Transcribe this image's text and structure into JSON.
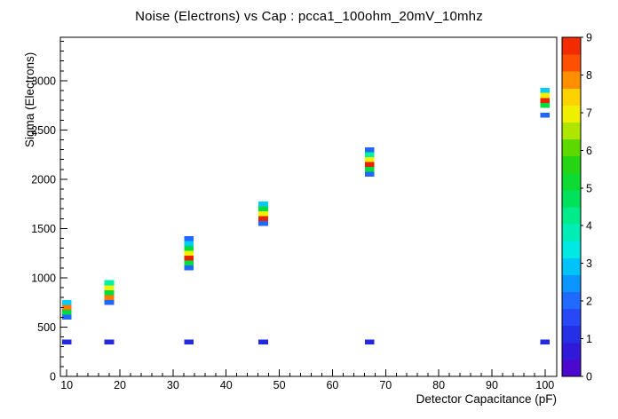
{
  "title": "Noise (Electrons) vs Cap : pcca1_100ohm_20mV_10mhz",
  "chart_data": {
    "type": "heatmap",
    "title": "Noise (Electrons) vs Cap : pcca1_100ohm_20mV_10mhz",
    "xlabel": "Detector Capacitance (pF)",
    "ylabel": "Sigma (Electrons)",
    "xlim": [
      8.8,
      102.2
    ],
    "ylim": [
      0,
      3440
    ],
    "zlim": [
      0,
      9
    ],
    "x_ticks": [
      10,
      20,
      30,
      40,
      50,
      60,
      70,
      80,
      90,
      100
    ],
    "y_ticks": [
      0,
      500,
      1000,
      1500,
      2000,
      2500,
      3000
    ],
    "z_ticks": [
      0,
      1,
      2,
      3,
      4,
      5,
      6,
      7,
      8,
      9
    ],
    "x_bin_width": 1.8,
    "y_bin_width": 50,
    "grid": false,
    "legend_position": "right-colorbar",
    "frame_color": "#000000",
    "palette": [
      [
        0.0,
        "#5a00c8"
      ],
      [
        0.1,
        "#2222dd"
      ],
      [
        0.2,
        "#2a55ff"
      ],
      [
        0.3,
        "#00aaff"
      ],
      [
        0.36,
        "#00e8f0"
      ],
      [
        0.45,
        "#00f0a0"
      ],
      [
        0.55,
        "#00dd44"
      ],
      [
        0.65,
        "#33d200"
      ],
      [
        0.72,
        "#a8e500"
      ],
      [
        0.78,
        "#f5f000"
      ],
      [
        0.84,
        "#ffc800"
      ],
      [
        0.89,
        "#ff7700"
      ],
      [
        0.95,
        "#ff3300"
      ],
      [
        1.0,
        "#e62200"
      ]
    ],
    "cells": [
      {
        "x": 10,
        "y": 350,
        "z": 1
      },
      {
        "x": 10,
        "y": 600,
        "z": 2
      },
      {
        "x": 10,
        "y": 650,
        "z": 5
      },
      {
        "x": 10,
        "y": 700,
        "z": 8
      },
      {
        "x": 10,
        "y": 750,
        "z": 3
      },
      {
        "x": 18,
        "y": 350,
        "z": 1
      },
      {
        "x": 18,
        "y": 750,
        "z": 2
      },
      {
        "x": 18,
        "y": 800,
        "z": 8
      },
      {
        "x": 18,
        "y": 850,
        "z": 5
      },
      {
        "x": 18,
        "y": 900,
        "z": 7
      },
      {
        "x": 18,
        "y": 950,
        "z": 4
      },
      {
        "x": 33,
        "y": 350,
        "z": 1
      },
      {
        "x": 33,
        "y": 1100,
        "z": 2
      },
      {
        "x": 33,
        "y": 1150,
        "z": 5
      },
      {
        "x": 33,
        "y": 1200,
        "z": 9
      },
      {
        "x": 33,
        "y": 1250,
        "z": 7
      },
      {
        "x": 33,
        "y": 1300,
        "z": 5
      },
      {
        "x": 33,
        "y": 1350,
        "z": 3
      },
      {
        "x": 33,
        "y": 1400,
        "z": 2
      },
      {
        "x": 47,
        "y": 350,
        "z": 1
      },
      {
        "x": 47,
        "y": 1550,
        "z": 2
      },
      {
        "x": 47,
        "y": 1600,
        "z": 9
      },
      {
        "x": 47,
        "y": 1650,
        "z": 7
      },
      {
        "x": 47,
        "y": 1700,
        "z": 5
      },
      {
        "x": 47,
        "y": 1750,
        "z": 3
      },
      {
        "x": 67,
        "y": 350,
        "z": 1
      },
      {
        "x": 67,
        "y": 2050,
        "z": 2
      },
      {
        "x": 67,
        "y": 2100,
        "z": 5
      },
      {
        "x": 67,
        "y": 2150,
        "z": 9
      },
      {
        "x": 67,
        "y": 2200,
        "z": 7
      },
      {
        "x": 67,
        "y": 2250,
        "z": 4
      },
      {
        "x": 67,
        "y": 2300,
        "z": 2
      },
      {
        "x": 100,
        "y": 350,
        "z": 1
      },
      {
        "x": 100,
        "y": 2650,
        "z": 2
      },
      {
        "x": 100,
        "y": 2750,
        "z": 5
      },
      {
        "x": 100,
        "y": 2800,
        "z": 9
      },
      {
        "x": 100,
        "y": 2850,
        "z": 7
      },
      {
        "x": 100,
        "y": 2900,
        "z": 3
      }
    ]
  }
}
